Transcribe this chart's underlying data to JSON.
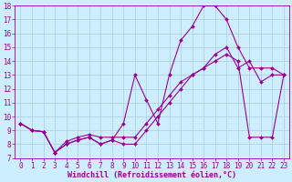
{
  "xlabel": "Windchill (Refroidissement éolien,°C)",
  "line1_x": [
    0,
    1,
    2,
    3,
    4,
    5,
    6,
    7,
    8,
    9,
    10,
    11,
    12,
    13,
    14,
    15,
    16,
    17,
    18,
    19,
    20,
    21,
    22,
    23
  ],
  "line1_y": [
    9.5,
    9.0,
    8.9,
    7.4,
    8.0,
    8.3,
    8.5,
    8.0,
    8.3,
    9.5,
    13.0,
    11.2,
    9.5,
    13.0,
    15.5,
    16.5,
    18.0,
    18.0,
    17.0,
    15.0,
    13.5,
    13.5,
    13.5,
    13.0
  ],
  "line2_x": [
    0,
    1,
    2,
    3,
    4,
    5,
    6,
    7,
    8,
    9,
    10,
    11,
    12,
    13,
    14,
    15,
    16,
    17,
    18,
    19,
    20,
    21,
    22,
    23
  ],
  "line2_y": [
    9.5,
    9.0,
    8.9,
    7.4,
    8.0,
    8.3,
    8.5,
    8.0,
    8.3,
    8.0,
    8.0,
    9.0,
    10.0,
    11.0,
    12.0,
    13.0,
    13.5,
    14.5,
    15.0,
    13.5,
    14.0,
    12.5,
    13.0,
    13.0
  ],
  "line3_x": [
    0,
    1,
    2,
    3,
    4,
    5,
    6,
    7,
    8,
    9,
    10,
    11,
    12,
    13,
    14,
    15,
    16,
    17,
    18,
    19,
    20,
    21,
    22,
    23
  ],
  "line3_y": [
    9.5,
    9.0,
    8.9,
    7.4,
    8.2,
    8.5,
    8.7,
    8.5,
    8.5,
    8.5,
    8.5,
    9.5,
    10.5,
    11.5,
    12.5,
    13.0,
    13.5,
    14.0,
    14.5,
    14.0,
    8.5,
    8.5,
    8.5,
    13.0
  ],
  "line_color": "#990099",
  "bg_color": "#cceeff",
  "grid_color": "#aaccdd",
  "xlim_min": -0.5,
  "xlim_max": 23.5,
  "ylim_min": 7,
  "ylim_max": 18,
  "xticks": [
    0,
    1,
    2,
    3,
    4,
    5,
    6,
    7,
    8,
    9,
    10,
    11,
    12,
    13,
    14,
    15,
    16,
    17,
    18,
    19,
    20,
    21,
    22,
    23
  ],
  "yticks": [
    7,
    8,
    9,
    10,
    11,
    12,
    13,
    14,
    15,
    16,
    17,
    18
  ],
  "marker": "D",
  "markersize": 2.0,
  "linewidth": 0.8,
  "xlabel_fontsize": 6.0,
  "tick_fontsize": 5.5
}
